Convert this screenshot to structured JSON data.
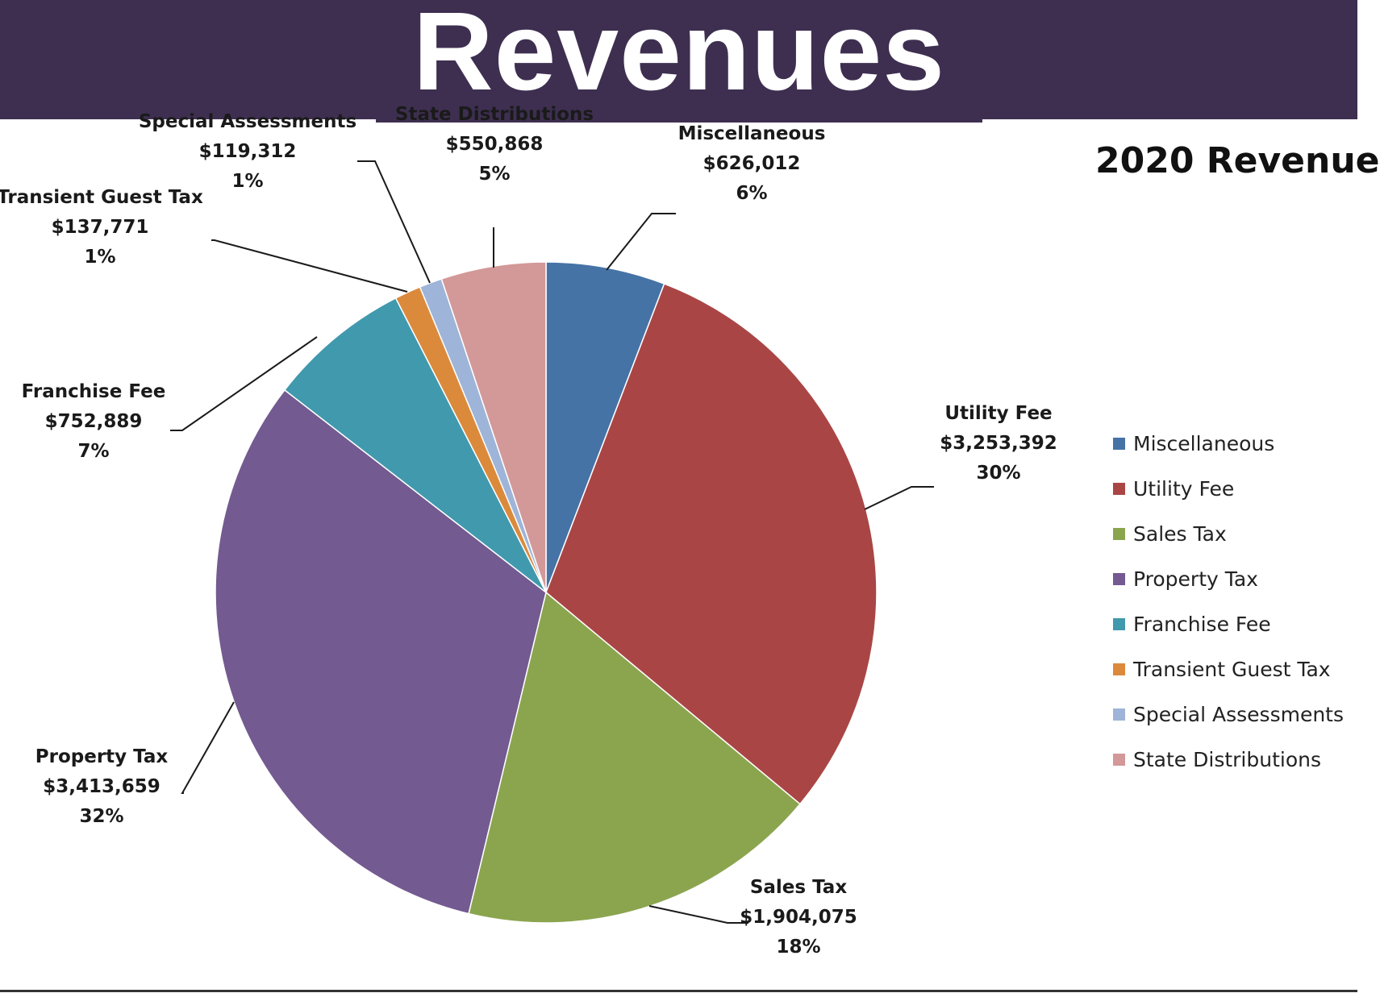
{
  "header": {
    "title": "Revenues"
  },
  "chart_data": {
    "type": "pie",
    "title": "2020 Revenue",
    "legend_position": "right",
    "categories": [
      "Miscellaneous",
      "Utility Fee",
      "Sales Tax",
      "Property Tax",
      "Franchise Fee",
      "Transient Guest Tax",
      "Special Assessments",
      "State Distributions"
    ],
    "values": [
      626012,
      3253392,
      1904075,
      3413659,
      752889,
      137771,
      119312,
      550868
    ],
    "value_labels": [
      "$626,012",
      "$3,253,392",
      "$1,904,075",
      "$3,413,659",
      "$752,889",
      "$137,771",
      "$119,312",
      "$550,868"
    ],
    "percent_labels": [
      "6%",
      "30%",
      "18%",
      "32%",
      "7%",
      "1%",
      "1%",
      "5%"
    ],
    "colors": [
      "#4673a6",
      "#a94645",
      "#8ba54f",
      "#735a90",
      "#4199ae",
      "#db8a3c",
      "#9eb4d8",
      "#d39898"
    ]
  }
}
